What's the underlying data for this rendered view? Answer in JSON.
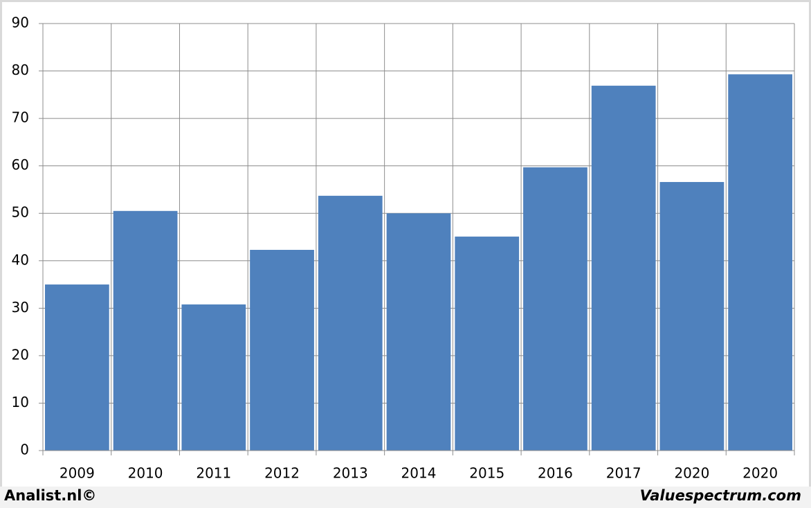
{
  "chart_data": {
    "type": "bar",
    "categories": [
      "2009",
      "2010",
      "2011",
      "2012",
      "2013",
      "2014",
      "2015",
      "2016",
      "2017",
      "2020",
      "2020"
    ],
    "values": [
      35.0,
      50.5,
      30.8,
      42.3,
      53.7,
      50.0,
      45.1,
      59.7,
      76.9,
      56.6,
      79.3
    ],
    "color": "#4f81bd",
    "ylim": [
      0,
      90
    ],
    "yticks": [
      0,
      10,
      20,
      30,
      40,
      50,
      60,
      70,
      80,
      90
    ],
    "grid": true
  },
  "footer": {
    "left": "Analist.nl©",
    "right": "Valuespectrum.com"
  }
}
